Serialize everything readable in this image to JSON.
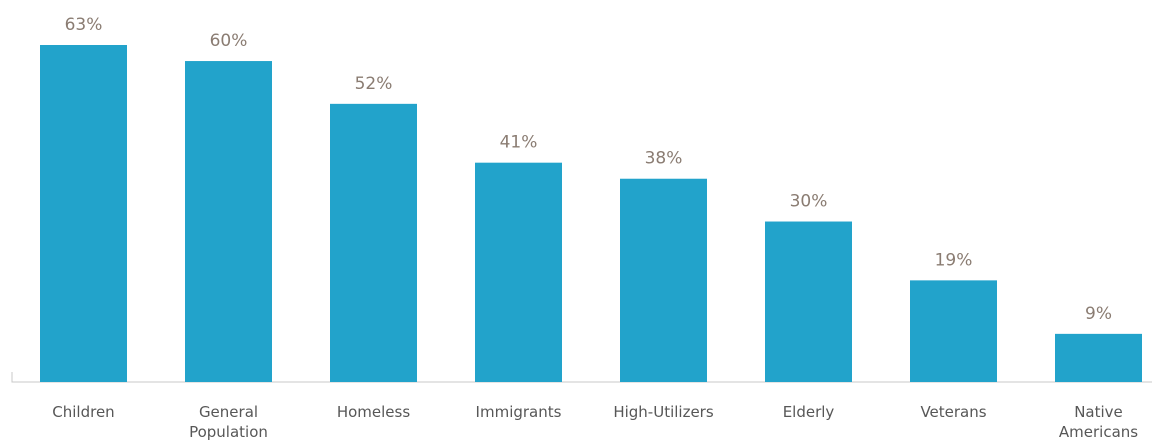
{
  "chart_data": {
    "type": "bar",
    "categories": [
      "Children",
      "General Population",
      "Homeless",
      "Immigrants",
      "High-Utilizers",
      "Elderly",
      "Veterans",
      "Native Americans"
    ],
    "category_lines": [
      [
        "Children"
      ],
      [
        "General",
        "Population"
      ],
      [
        "Homeless"
      ],
      [
        "Immigrants"
      ],
      [
        "High-Utilizers"
      ],
      [
        "Elderly"
      ],
      [
        "Veterans"
      ],
      [
        "Native",
        "Americans"
      ]
    ],
    "values": [
      63,
      60,
      52,
      41,
      38,
      30,
      19,
      9
    ],
    "value_labels": [
      "63%",
      "60%",
      "52%",
      "41%",
      "38%",
      "30%",
      "19%",
      "9%"
    ],
    "ylim": [
      0,
      63
    ],
    "grid": false,
    "colors": {
      "bar": "#22a3cb",
      "value_label": "#8a7c72",
      "tick_label": "#575757",
      "axis": "#c8c8c8"
    }
  }
}
